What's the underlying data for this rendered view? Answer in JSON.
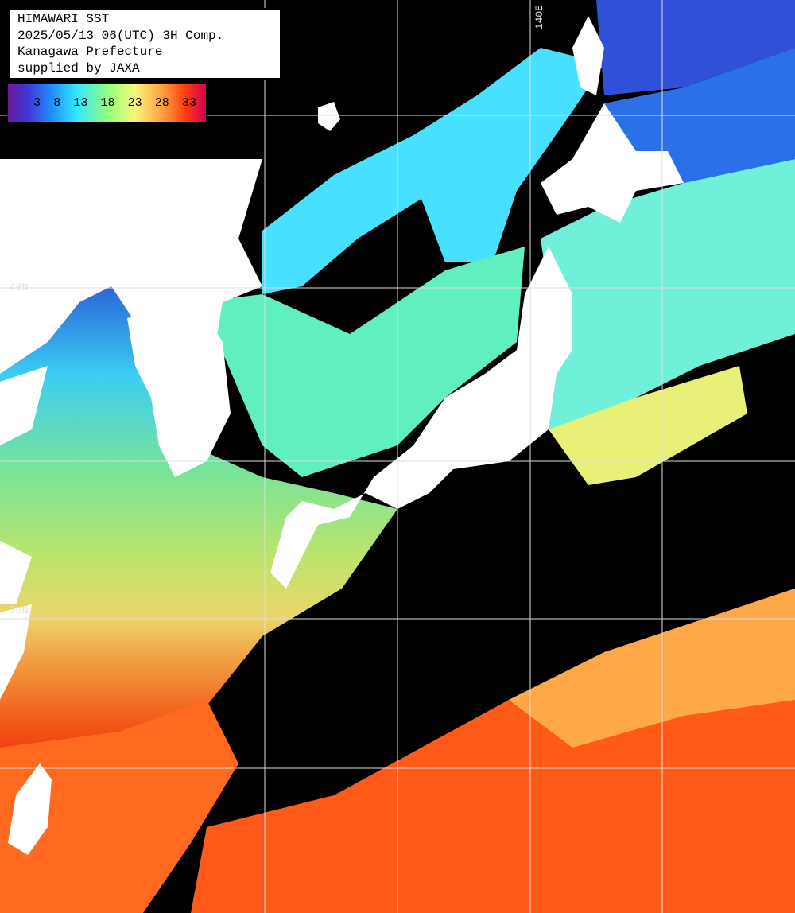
{
  "header": {
    "lines": [
      "HIMAWARI SST",
      "2025/05/13 06(UTC) 3H Comp.",
      "Kanagawa Prefecture",
      "supplied by JAXA"
    ]
  },
  "colorbar": {
    "ticks": [
      3,
      8,
      13,
      18,
      23,
      28,
      33
    ]
  },
  "grid_labels": {
    "lon": [
      "140E"
    ],
    "lat": [
      "40N",
      "30N"
    ]
  }
}
